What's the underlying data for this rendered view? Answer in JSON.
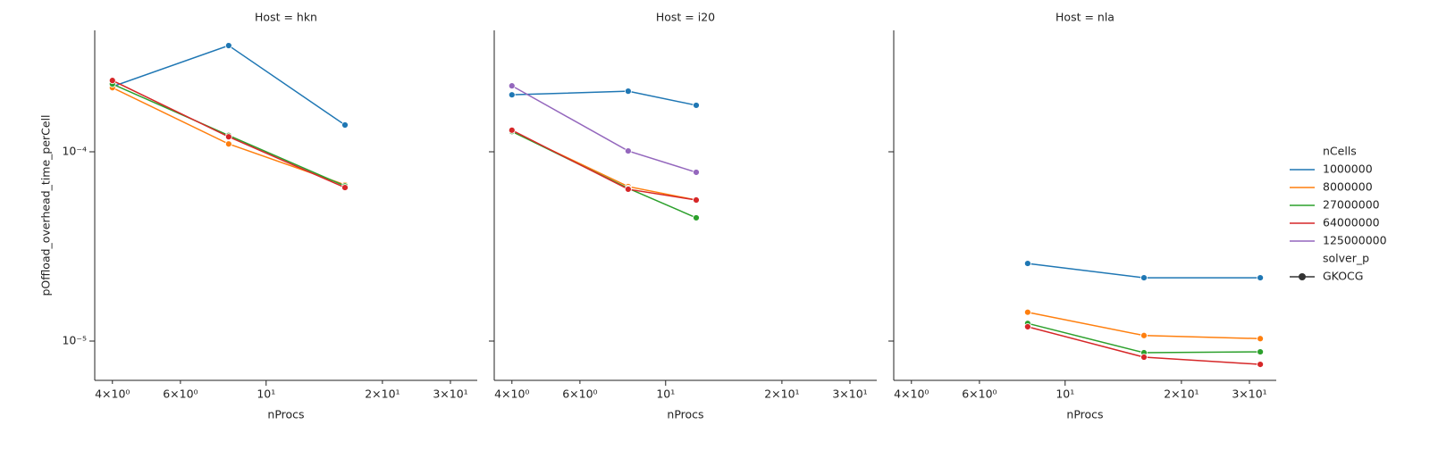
{
  "chart_data": [
    {
      "type": "line",
      "title": "Host = hkn",
      "xlabel": "nProcs",
      "ylabel": "pOffload_overhead_time_perCell",
      "xscale": "log",
      "yscale": "log",
      "xlim": [
        3.6,
        35.2
      ],
      "ylim": [
        6.2e-06,
        0.000438
      ],
      "xticks": [
        {
          "value": 4,
          "label": "4×10⁰"
        },
        {
          "value": 6,
          "label": "6×10⁰"
        },
        {
          "value": 10,
          "label": "10¹"
        },
        {
          "value": 20,
          "label": "2×10¹"
        },
        {
          "value": 30,
          "label": "3×10¹"
        }
      ],
      "yticks": [
        {
          "value": 0.0001,
          "label": "10⁻⁴"
        },
        {
          "value": 1e-05,
          "label": "10⁻⁵"
        }
      ],
      "x": [
        4,
        8,
        16
      ],
      "series": [
        {
          "name": "1000000",
          "color": "#1f77b4",
          "values": [
            0.000221,
            0.000364,
            0.0001385
          ]
        },
        {
          "name": "8000000",
          "color": "#ff7f0e",
          "values": [
            0.000218,
            0.00011,
            6.69e-05
          ]
        },
        {
          "name": "27000000",
          "color": "#2ca02c",
          "values": [
            0.000228,
            0.000122,
            6.6e-05
          ]
        },
        {
          "name": "64000000",
          "color": "#d62728",
          "values": [
            0.000238,
            0.00012,
            6.47e-05
          ]
        }
      ]
    },
    {
      "type": "line",
      "title": "Host = i20",
      "xlabel": "nProcs",
      "xscale": "log",
      "yscale": "log",
      "xlim": [
        3.6,
        35.2
      ],
      "ylim": [
        6.2e-06,
        0.000438
      ],
      "xticks": [
        {
          "value": 4,
          "label": "4×10⁰"
        },
        {
          "value": 6,
          "label": "6×10⁰"
        },
        {
          "value": 10,
          "label": "10¹"
        },
        {
          "value": 20,
          "label": "2×10¹"
        },
        {
          "value": 30,
          "label": "3×10¹"
        }
      ],
      "x": [
        4,
        8,
        12
      ],
      "series": [
        {
          "name": "1000000",
          "color": "#1f77b4",
          "values": [
            0.0002,
            0.000209,
            0.000176
          ]
        },
        {
          "name": "8000000",
          "color": "#ff7f0e",
          "values": [
            0.000128,
            6.55e-05,
            5.56e-05
          ]
        },
        {
          "name": "27000000",
          "color": "#2ca02c",
          "values": [
            0.000128,
            6.41e-05,
            4.48e-05
          ]
        },
        {
          "name": "64000000",
          "color": "#d62728",
          "values": [
            0.00013,
            6.34e-05,
            5.56e-05
          ]
        },
        {
          "name": "125000000",
          "color": "#9467bd",
          "values": [
            0.000223,
            0.000101,
            7.79e-05
          ]
        }
      ]
    },
    {
      "type": "line",
      "title": "Host = nla",
      "xlabel": "nProcs",
      "xscale": "log",
      "yscale": "log",
      "xlim": [
        3.6,
        35.2
      ],
      "ylim": [
        6.2e-06,
        0.000438
      ],
      "xticks": [
        {
          "value": 4,
          "label": "4×10⁰"
        },
        {
          "value": 6,
          "label": "6×10⁰"
        },
        {
          "value": 10,
          "label": "10¹"
        },
        {
          "value": 20,
          "label": "2×10¹"
        },
        {
          "value": 30,
          "label": "3×10¹"
        }
      ],
      "x": [
        8,
        16,
        32
      ],
      "series": [
        {
          "name": "1000000",
          "color": "#1f77b4",
          "values": [
            2.57e-05,
            2.16e-05,
            2.16e-05
          ]
        },
        {
          "name": "8000000",
          "color": "#ff7f0e",
          "values": [
            1.42e-05,
            1.07e-05,
            1.03e-05
          ]
        },
        {
          "name": "27000000",
          "color": "#2ca02c",
          "values": [
            1.24e-05,
            8.68e-06,
            8.77e-06
          ]
        },
        {
          "name": "64000000",
          "color": "#d62728",
          "values": [
            1.19e-05,
            8.22e-06,
            7.53e-06
          ]
        }
      ]
    }
  ],
  "legend": {
    "hue_title": "nCells",
    "hue": [
      {
        "name": "1000000",
        "color": "#1f77b4"
      },
      {
        "name": "8000000",
        "color": "#ff7f0e"
      },
      {
        "name": "27000000",
        "color": "#2ca02c"
      },
      {
        "name": "64000000",
        "color": "#d62728"
      },
      {
        "name": "125000000",
        "color": "#9467bd"
      }
    ],
    "style_title": "solver_p",
    "style": [
      "GKOCG"
    ],
    "style_color": "#333333"
  }
}
